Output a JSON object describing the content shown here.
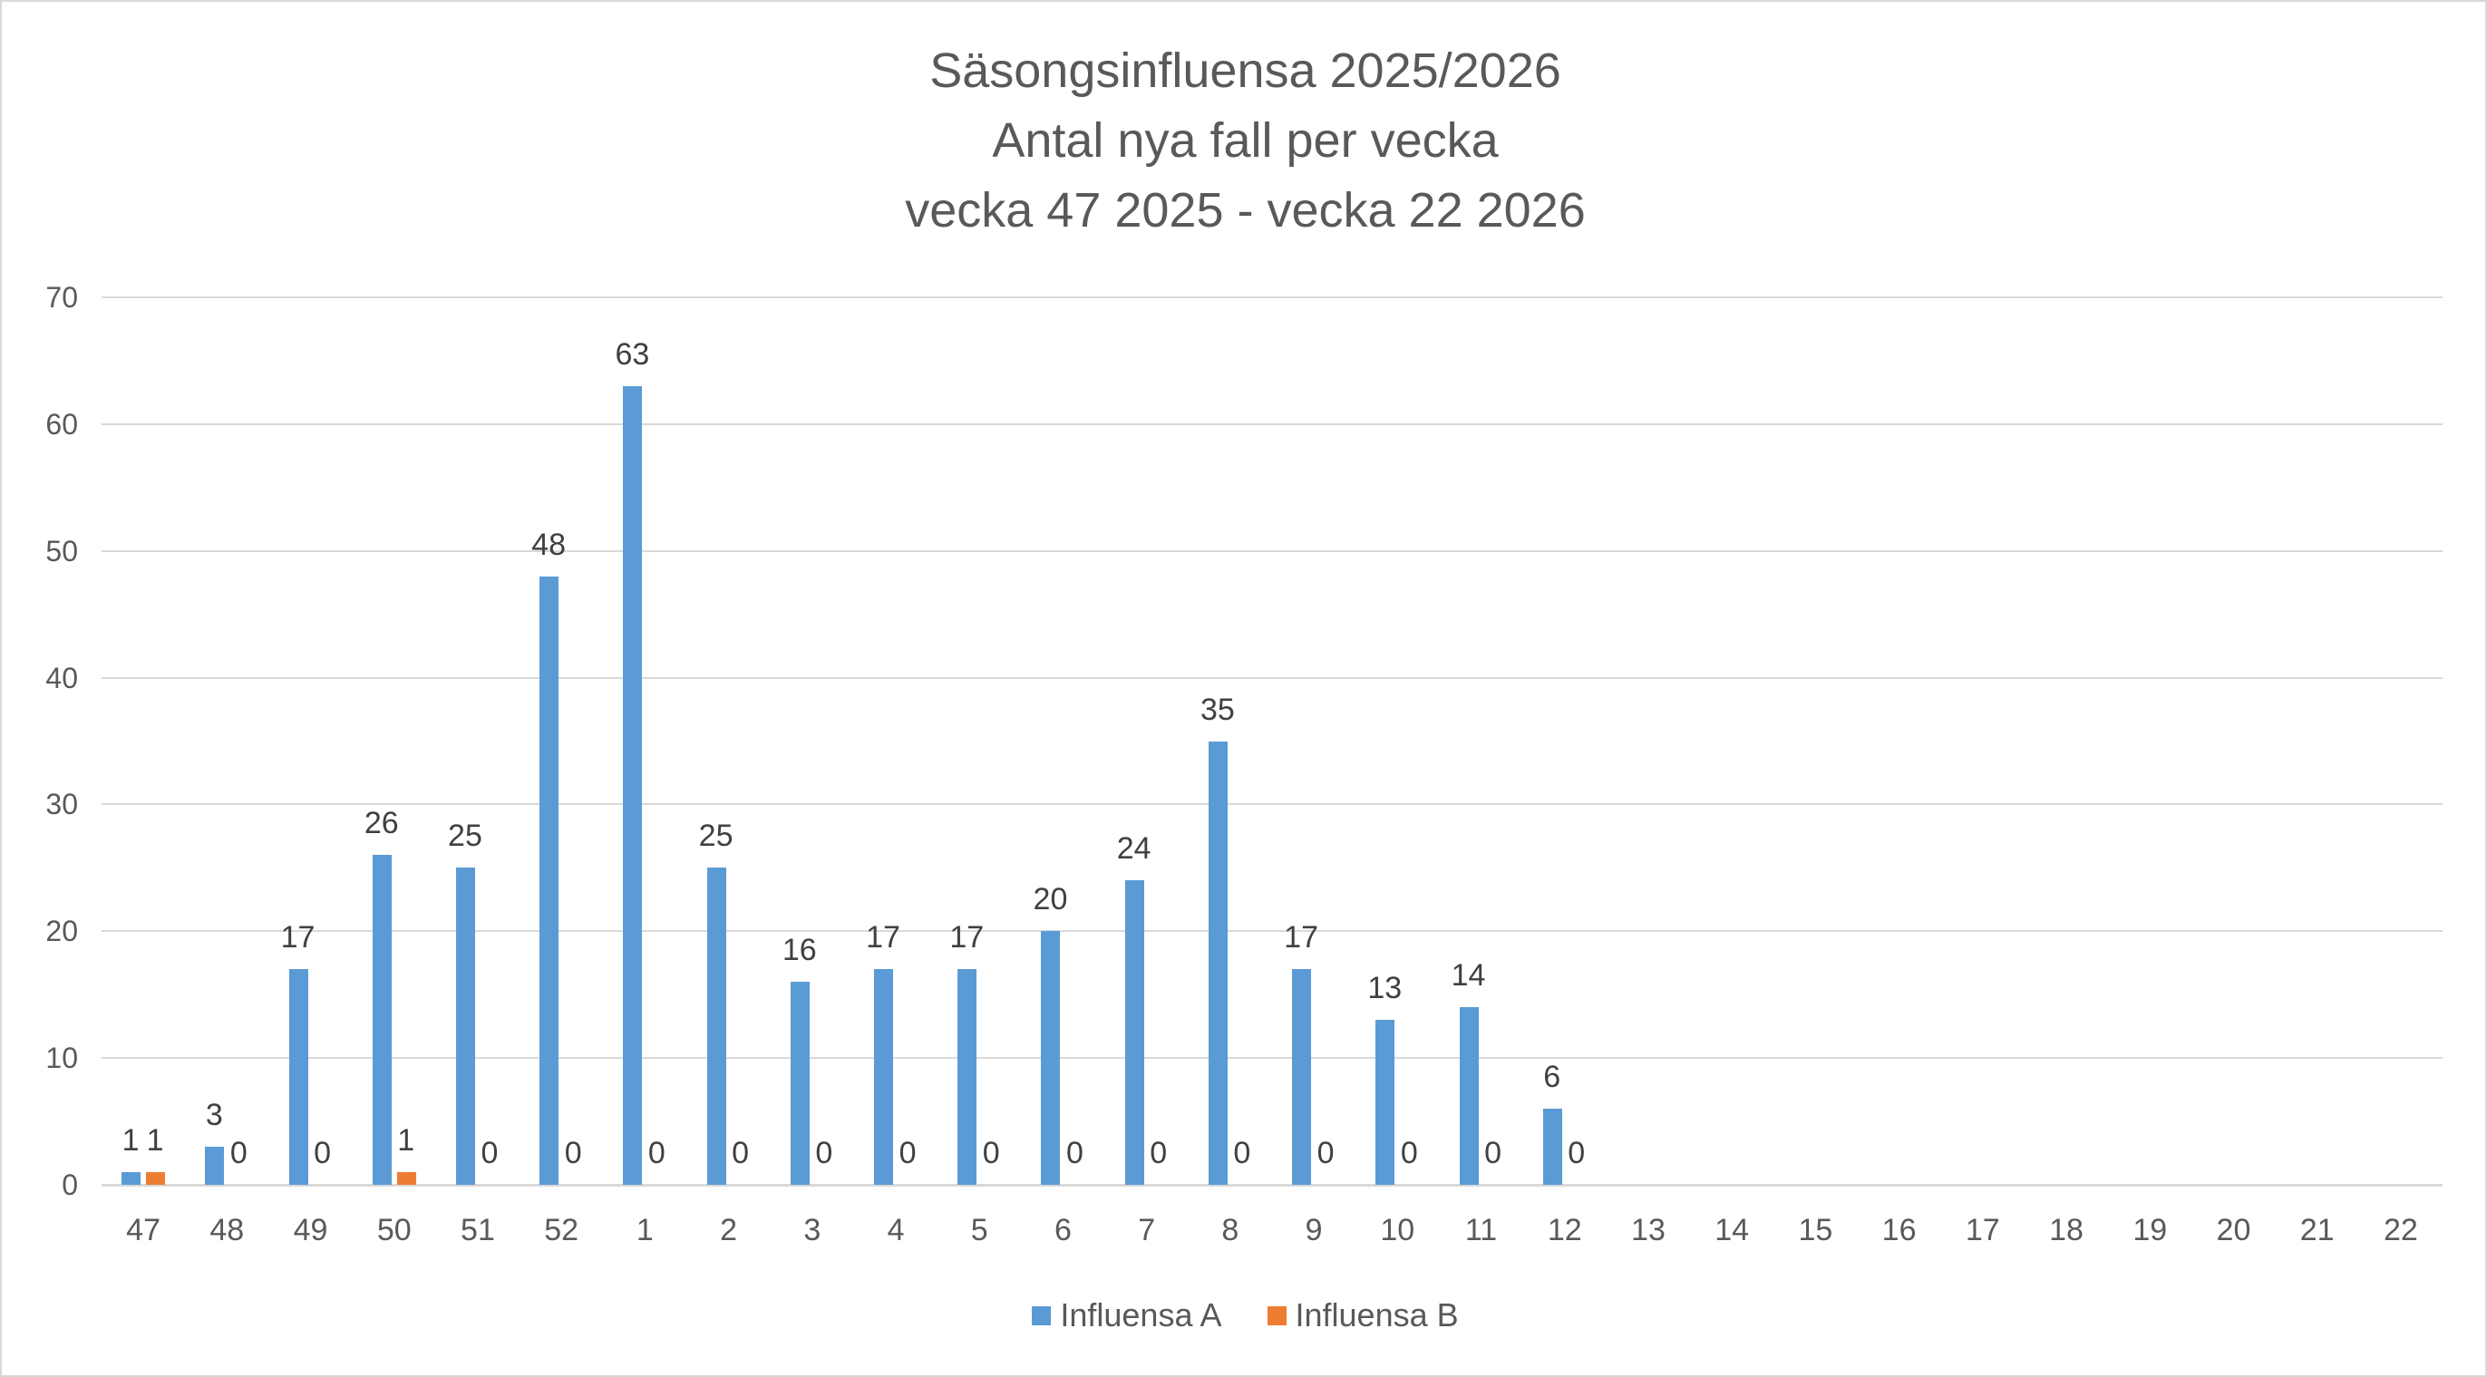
{
  "chart_data": {
    "type": "bar",
    "title": "Säsongsinfluensa 2025/2026",
    "subtitle_lines": [
      "Antal nya fall per vecka",
      "vecka 47 2025 - vecka 22 2026"
    ],
    "xlabel": "",
    "ylabel": "",
    "ylim": [
      0,
      70
    ],
    "yticks": [
      0,
      10,
      20,
      30,
      40,
      50,
      60,
      70
    ],
    "grid": true,
    "legend_position": "bottom",
    "categories": [
      "47",
      "48",
      "49",
      "50",
      "51",
      "52",
      "1",
      "2",
      "3",
      "4",
      "5",
      "6",
      "7",
      "8",
      "9",
      "10",
      "11",
      "12",
      "13",
      "14",
      "15",
      "16",
      "17",
      "18",
      "19",
      "20",
      "21",
      "22"
    ],
    "series": [
      {
        "name": "Influensa A",
        "color": "#5b9bd5",
        "values": [
          1,
          3,
          17,
          26,
          25,
          48,
          63,
          25,
          16,
          17,
          17,
          20,
          24,
          35,
          17,
          13,
          14,
          6,
          null,
          null,
          null,
          null,
          null,
          null,
          null,
          null,
          null,
          null
        ]
      },
      {
        "name": "Influensa B",
        "color": "#ed7d31",
        "values": [
          1,
          0,
          0,
          1,
          0,
          0,
          0,
          0,
          0,
          0,
          0,
          0,
          0,
          0,
          0,
          0,
          0,
          0,
          null,
          null,
          null,
          null,
          null,
          null,
          null,
          null,
          null,
          null
        ]
      }
    ]
  },
  "title": {
    "line1": "Säsongsinfluensa 2025/2026",
    "line2": "Antal nya fall per vecka",
    "line3": "vecka 47 2025 - vecka 22 2026"
  },
  "legend": {
    "items": [
      {
        "label": "Influensa A",
        "color": "#5b9bd5"
      },
      {
        "label": "Influensa B",
        "color": "#ed7d31"
      }
    ]
  }
}
